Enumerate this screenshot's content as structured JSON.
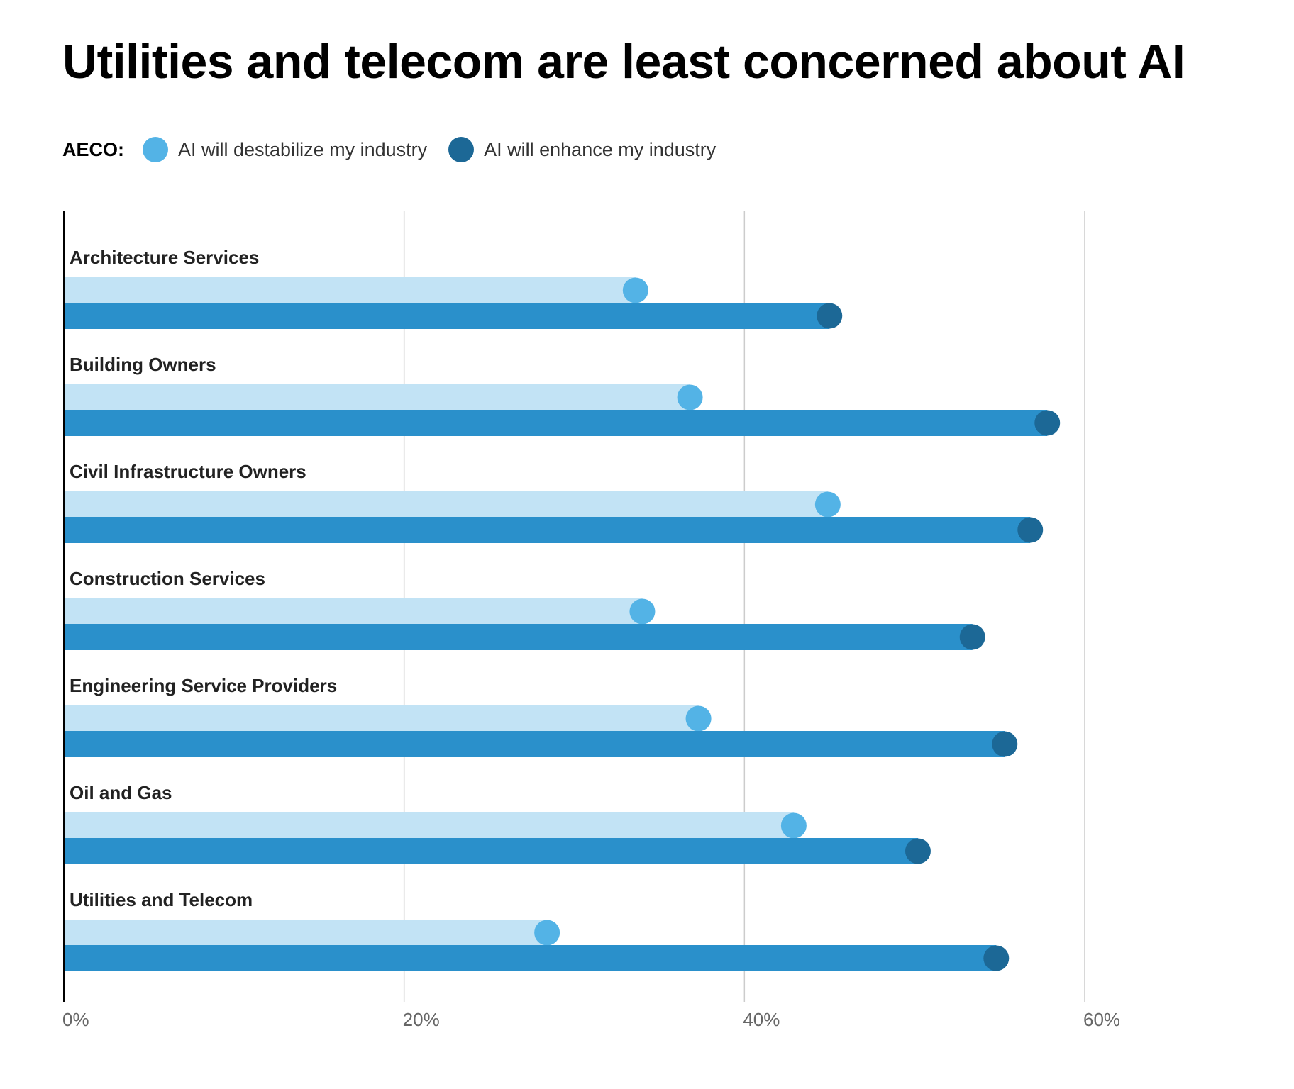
{
  "chart_data": {
    "type": "bar",
    "title": "Utilities and telecom are least concerned about AI",
    "legend_label": "AECO:",
    "legend_placement": "top-left",
    "categories": [
      "Architecture Services",
      "Building Owners",
      "Civil Infrastructure Owners",
      "Construction Services",
      "Engineering Service Providers",
      "Oil and Gas",
      "Utilities and Telecom"
    ],
    "series": [
      {
        "name": "AI will destabilize my industry",
        "values": [
          33.6,
          36.8,
          44.9,
          34.0,
          37.3,
          42.9,
          28.4
        ],
        "bar_color": "#c2e3f5",
        "dot_color": "#53b3e6"
      },
      {
        "name": "AI will enhance my industry",
        "values": [
          45.0,
          57.8,
          56.8,
          53.4,
          55.3,
          50.2,
          54.8
        ],
        "bar_color": "#2a90cb",
        "dot_color": "#1c6896"
      }
    ],
    "xlim": [
      0,
      60
    ],
    "xticks": [
      0,
      20,
      40,
      60
    ],
    "xtick_labels": [
      "0%",
      "20%",
      "40%",
      "60%"
    ],
    "grid": true,
    "orientation": "horizontal"
  }
}
